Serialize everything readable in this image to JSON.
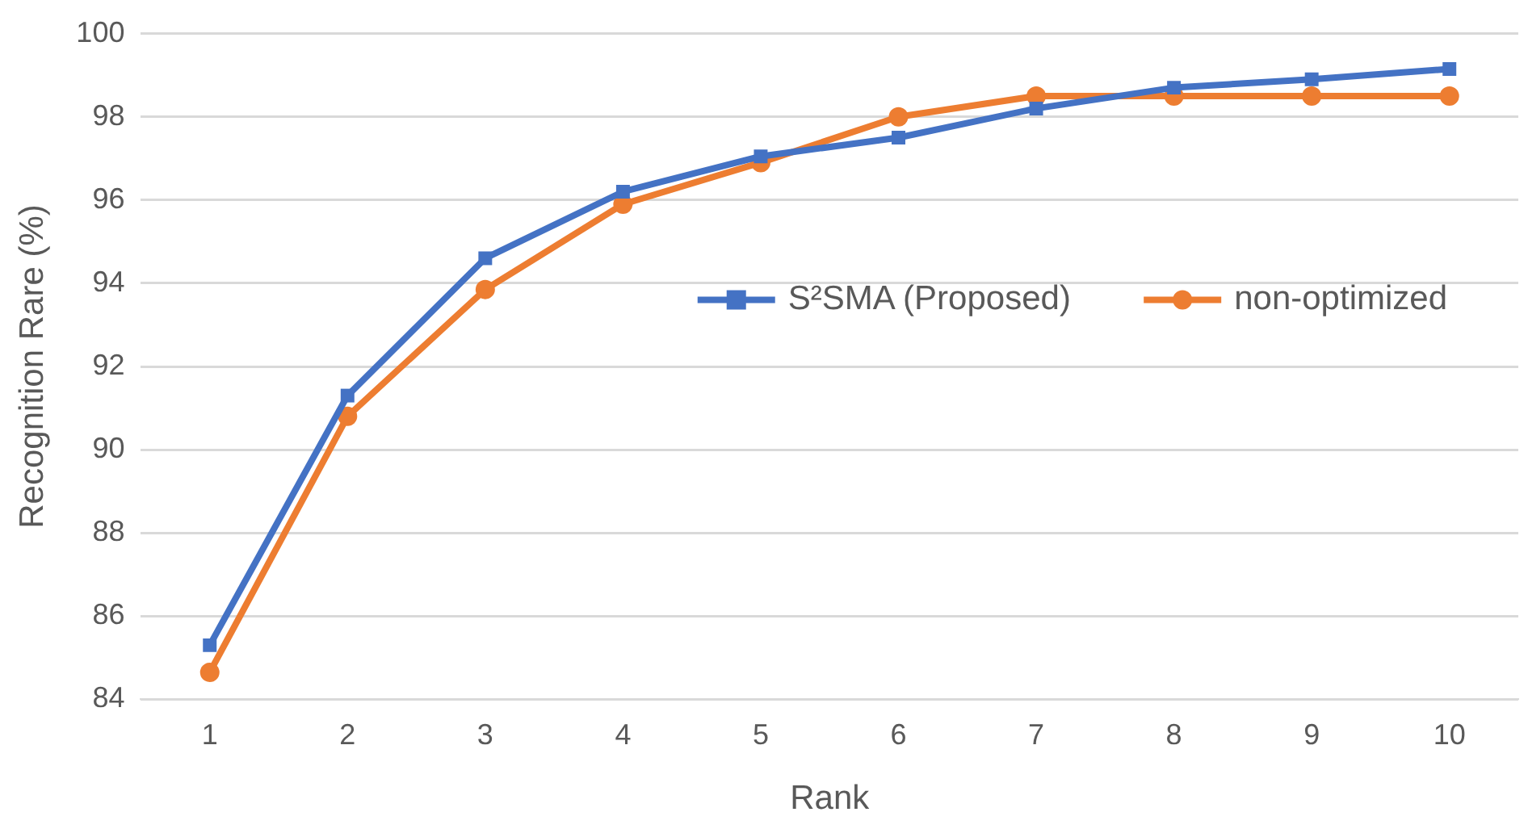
{
  "chart_data": {
    "type": "line",
    "xlabel": "Rank",
    "ylabel": "Recognition Rare (%)",
    "categories": [
      "1",
      "2",
      "3",
      "4",
      "5",
      "6",
      "7",
      "8",
      "9",
      "10"
    ],
    "series": [
      {
        "name": "S²SMA (Proposed)",
        "color": "#4472c4",
        "marker": "square",
        "values": [
          85.3,
          91.3,
          94.6,
          96.2,
          97.05,
          97.5,
          98.2,
          98.7,
          98.9,
          99.15
        ]
      },
      {
        "name": "non-optimized",
        "color": "#ed7d31",
        "marker": "circle",
        "values": [
          84.65,
          90.8,
          93.85,
          95.9,
          96.9,
          98.0,
          98.5,
          98.5,
          98.5,
          98.5
        ]
      }
    ],
    "ylim": [
      84,
      100
    ],
    "yticks": [
      84,
      86,
      88,
      90,
      92,
      94,
      96,
      98,
      100
    ],
    "grid": "y",
    "legend": "right",
    "line_style": "solid"
  }
}
